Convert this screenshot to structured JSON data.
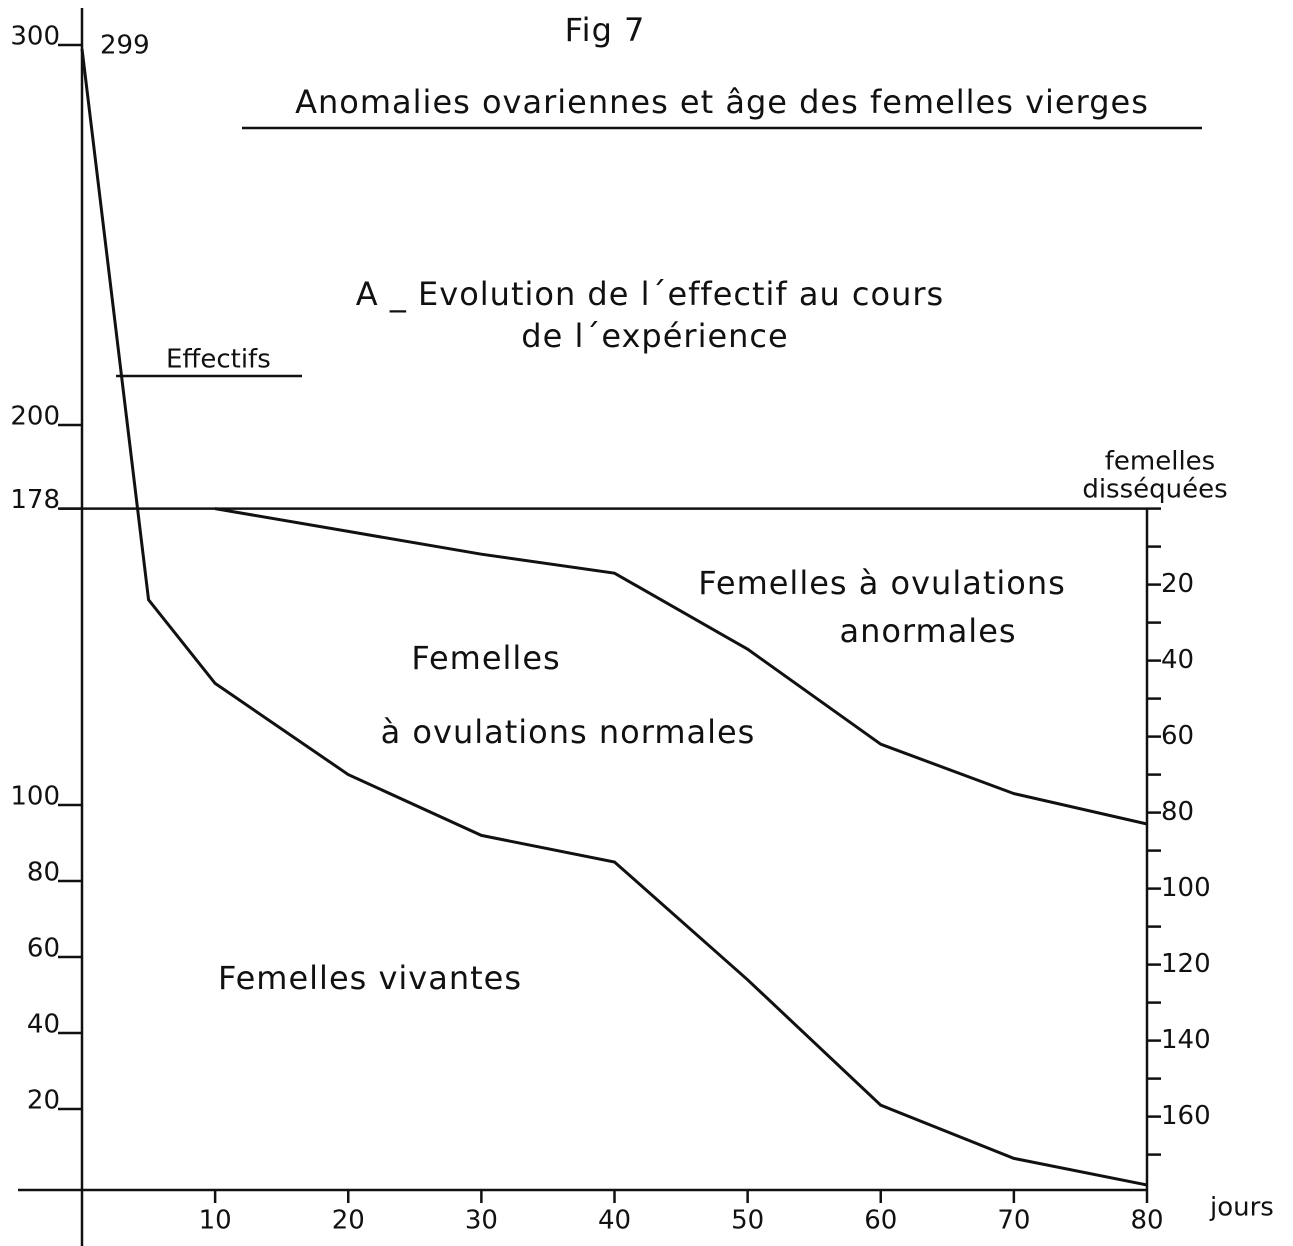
{
  "chart_data": {
    "type": "line",
    "title": "Fig 7",
    "subtitle": "Anomalies ovariennes et âge des femelles vierges",
    "panel_title": [
      "A _ Evolution de l´effectif au cours",
      "de l´expérience"
    ],
    "x_label": "jours",
    "y2_label": [
      "femelles",
      "disséquées"
    ],
    "annotations": {
      "peak": "299",
      "anormales": [
        "Femelles à ovulations",
        "anormales"
      ],
      "normales": [
        "Femelles",
        "à ovulations normales"
      ],
      "vivantes": "Femelles vivantes"
    },
    "x": [
      0,
      5,
      10,
      20,
      30,
      40,
      50,
      60,
      70,
      80
    ],
    "xlim": [
      0,
      80
    ],
    "xticks": [
      10,
      20,
      30,
      40,
      50,
      60,
      70,
      80
    ],
    "ylim": [
      0,
      300
    ],
    "yticks": [
      20,
      40,
      60,
      80,
      100,
      178,
      200,
      300
    ],
    "y2lim": [
      178,
      -122
    ],
    "y2ticks": [
      20,
      40,
      60,
      80,
      100,
      120,
      140,
      160
    ],
    "y2minorticks": [
      0,
      10,
      30,
      50,
      70,
      90,
      110,
      130,
      150,
      170
    ],
    "reference_line": 178,
    "series": [
      {
        "name": "Effectifs",
        "color": "#111111",
        "values": [
          299,
          154,
          132,
          108,
          92,
          85,
          54,
          21,
          7,
          0
        ]
      },
      {
        "color": "#111111",
        "axis": "y2",
        "values": [
          null,
          null,
          0,
          6,
          12,
          17,
          37,
          62,
          75,
          83
        ]
      }
    ]
  }
}
